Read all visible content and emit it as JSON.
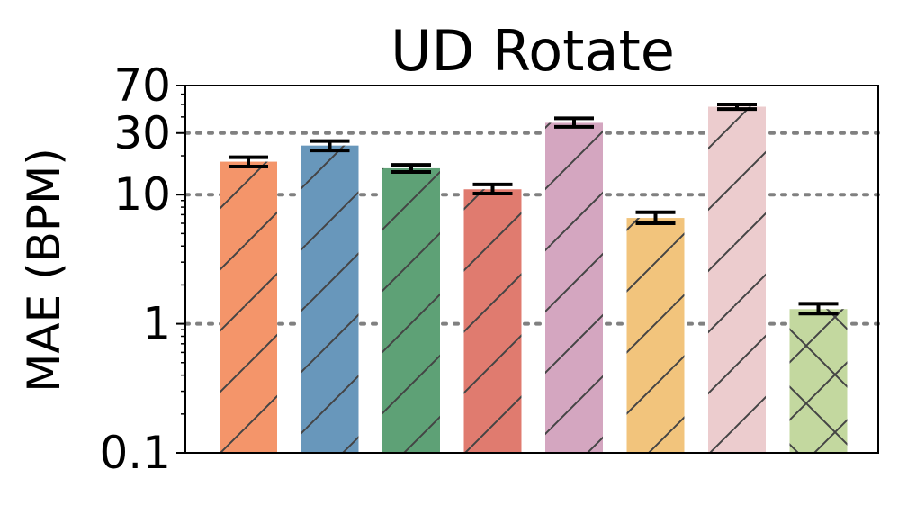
{
  "chart_data": {
    "type": "bar",
    "title": "UD Rotate",
    "xlabel": "",
    "ylabel": "MAE (BPM)",
    "yscale": "log",
    "ylim": [
      0.1,
      70
    ],
    "yticks": [
      0.1,
      1,
      10,
      30,
      70
    ],
    "ytick_labels": [
      "0.1",
      "1",
      "10",
      "30",
      "70"
    ],
    "grid_values": [
      1,
      10,
      30
    ],
    "grid": "horizontal dotted",
    "legend": "none",
    "series": [
      {
        "color": "#f4956a",
        "hatch": "diagonal",
        "values": [
          18,
          24,
          16,
          11,
          36,
          6.6,
          48,
          1.3
        ],
        "err_low": [
          16.5,
          22,
          15,
          10.2,
          33.5,
          6.0,
          46,
          1.2
        ],
        "err_high": [
          19.5,
          26,
          17,
          12,
          39,
          7.3,
          50,
          1.43
        ]
      }
    ],
    "bars": [
      {
        "value": 18,
        "err_low": 16.5,
        "err_high": 19.5,
        "color": "#f4956a",
        "hatch": "diagonal"
      },
      {
        "value": 24,
        "err_low": 22,
        "err_high": 26,
        "color": "#6897bb",
        "hatch": "diagonal"
      },
      {
        "value": 16,
        "err_low": 15,
        "err_high": 17,
        "color": "#5ea176",
        "hatch": "diagonal"
      },
      {
        "value": 11,
        "err_low": 10.2,
        "err_high": 12,
        "color": "#e07b6f",
        "hatch": "diagonal"
      },
      {
        "value": 36,
        "err_low": 33.5,
        "err_high": 39,
        "color": "#d4a6c0",
        "hatch": "diagonal"
      },
      {
        "value": 6.6,
        "err_low": 6.0,
        "err_high": 7.3,
        "color": "#f2c47c",
        "hatch": "diagonal"
      },
      {
        "value": 48,
        "err_low": 46,
        "err_high": 50,
        "color": "#ecccce",
        "hatch": "diagonal"
      },
      {
        "value": 1.3,
        "err_low": 1.2,
        "err_high": 1.43,
        "color": "#c3d89f",
        "hatch": "cross"
      }
    ]
  }
}
